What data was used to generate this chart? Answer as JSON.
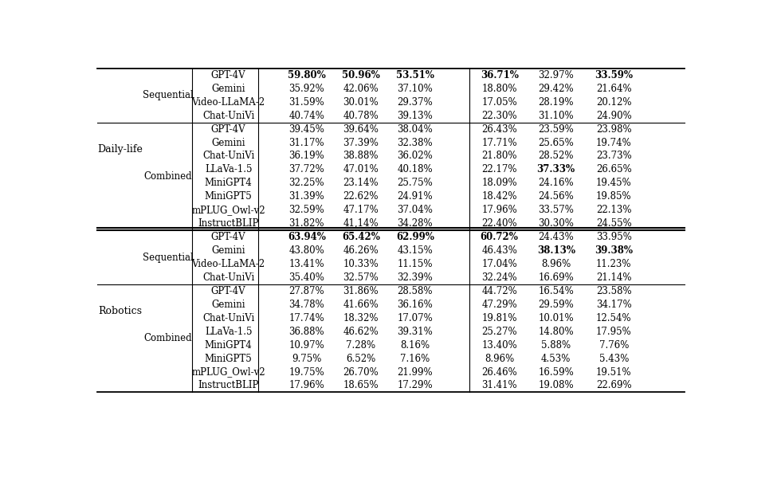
{
  "sections": [
    {
      "domain": "Daily-life",
      "subsections": [
        {
          "type": "Sequential",
          "rows": [
            {
              "model": "GPT-4V",
              "vals": [
                "59.80%",
                "50.96%",
                "53.51%",
                "36.71%",
                "32.97%",
                "33.59%"
              ],
              "bold": [
                true,
                true,
                true,
                true,
                false,
                true
              ]
            },
            {
              "model": "Gemini",
              "vals": [
                "35.92%",
                "42.06%",
                "37.10%",
                "18.80%",
                "29.42%",
                "21.64%"
              ],
              "bold": [
                false,
                false,
                false,
                false,
                false,
                false
              ]
            },
            {
              "model": "Video-LLaMA-2",
              "vals": [
                "31.59%",
                "30.01%",
                "29.37%",
                "17.05%",
                "28.19%",
                "20.12%"
              ],
              "bold": [
                false,
                false,
                false,
                false,
                false,
                false
              ]
            },
            {
              "model": "Chat-UniVi",
              "vals": [
                "40.74%",
                "40.78%",
                "39.13%",
                "22.30%",
                "31.10%",
                "24.90%"
              ],
              "bold": [
                false,
                false,
                false,
                false,
                false,
                false
              ]
            }
          ]
        },
        {
          "type": "Combined",
          "rows": [
            {
              "model": "GPT-4V",
              "vals": [
                "39.45%",
                "39.64%",
                "38.04%",
                "26.43%",
                "23.59%",
                "23.98%"
              ],
              "bold": [
                false,
                false,
                false,
                false,
                false,
                false
              ]
            },
            {
              "model": "Gemini",
              "vals": [
                "31.17%",
                "37.39%",
                "32.38%",
                "17.71%",
                "25.65%",
                "19.74%"
              ],
              "bold": [
                false,
                false,
                false,
                false,
                false,
                false
              ]
            },
            {
              "model": "Chat-UniVi",
              "vals": [
                "36.19%",
                "38.88%",
                "36.02%",
                "21.80%",
                "28.52%",
                "23.73%"
              ],
              "bold": [
                false,
                false,
                false,
                false,
                false,
                false
              ]
            },
            {
              "model": "LLaVa-1.5",
              "vals": [
                "37.72%",
                "47.01%",
                "40.18%",
                "22.17%",
                "37.33%",
                "26.65%"
              ],
              "bold": [
                false,
                false,
                false,
                false,
                true,
                false
              ]
            },
            {
              "model": "MiniGPT4",
              "vals": [
                "32.25%",
                "23.14%",
                "25.75%",
                "18.09%",
                "24.16%",
                "19.45%"
              ],
              "bold": [
                false,
                false,
                false,
                false,
                false,
                false
              ]
            },
            {
              "model": "MiniGPT5",
              "vals": [
                "31.39%",
                "22.62%",
                "24.91%",
                "18.42%",
                "24.56%",
                "19.85%"
              ],
              "bold": [
                false,
                false,
                false,
                false,
                false,
                false
              ]
            },
            {
              "model": "mPLUG_Owl-v2",
              "vals": [
                "32.59%",
                "47.17%",
                "37.04%",
                "17.96%",
                "33.57%",
                "22.13%"
              ],
              "bold": [
                false,
                false,
                false,
                false,
                false,
                false
              ]
            },
            {
              "model": "InstructBLIP",
              "vals": [
                "31.82%",
                "41,14%",
                "34.28%",
                "22.40%",
                "30.30%",
                "24.55%"
              ],
              "bold": [
                false,
                false,
                false,
                false,
                false,
                false
              ]
            }
          ]
        }
      ]
    },
    {
      "domain": "Robotics",
      "subsections": [
        {
          "type": "Sequential",
          "rows": [
            {
              "model": "GPT-4V",
              "vals": [
                "63.94%",
                "65.42%",
                "62.99%",
                "60.72%",
                "24.43%",
                "33.95%"
              ],
              "bold": [
                true,
                true,
                true,
                true,
                false,
                false
              ]
            },
            {
              "model": "Gemini",
              "vals": [
                "43.80%",
                "46.26%",
                "43.15%",
                "46.43%",
                "38.13%",
                "39.38%"
              ],
              "bold": [
                false,
                false,
                false,
                false,
                true,
                true
              ]
            },
            {
              "model": "Video-LLaMA-2",
              "vals": [
                "13.41%",
                "10.33%",
                "11.15%",
                "17.04%",
                "8.96%",
                "11.23%"
              ],
              "bold": [
                false,
                false,
                false,
                false,
                false,
                false
              ]
            },
            {
              "model": "Chat-UniVi",
              "vals": [
                "35.40%",
                "32.57%",
                "32.39%",
                "32.24%",
                "16.69%",
                "21.14%"
              ],
              "bold": [
                false,
                false,
                false,
                false,
                false,
                false
              ]
            }
          ]
        },
        {
          "type": "Combined",
          "rows": [
            {
              "model": "GPT-4V",
              "vals": [
                "27.87%",
                "31.86%",
                "28.58%",
                "44.72%",
                "16.54%",
                "23.58%"
              ],
              "bold": [
                false,
                false,
                false,
                false,
                false,
                false
              ]
            },
            {
              "model": "Gemini",
              "vals": [
                "34.78%",
                "41.66%",
                "36.16%",
                "47.29%",
                "29.59%",
                "34.17%"
              ],
              "bold": [
                false,
                false,
                false,
                false,
                false,
                false
              ]
            },
            {
              "model": "Chat-UniVi",
              "vals": [
                "17.74%",
                "18.32%",
                "17.07%",
                "19.81%",
                "10.01%",
                "12.54%"
              ],
              "bold": [
                false,
                false,
                false,
                false,
                false,
                false
              ]
            },
            {
              "model": "LLaVa-1.5",
              "vals": [
                "36.88%",
                "46.62%",
                "39.31%",
                "25.27%",
                "14.80%",
                "17.95%"
              ],
              "bold": [
                false,
                false,
                false,
                false,
                false,
                false
              ]
            },
            {
              "model": "MiniGPT4",
              "vals": [
                "10.97%",
                "7.28%",
                "8.16%",
                "13.40%",
                "5.88%",
                "7.76%"
              ],
              "bold": [
                false,
                false,
                false,
                false,
                false,
                false
              ]
            },
            {
              "model": "MiniGPT5",
              "vals": [
                "9.75%",
                "6.52%",
                "7.16%",
                "8.96%",
                "4.53%",
                "5.43%"
              ],
              "bold": [
                false,
                false,
                false,
                false,
                false,
                false
              ]
            },
            {
              "model": "mPLUG_Owl-v2",
              "vals": [
                "19.75%",
                "26.70%",
                "21.99%",
                "26.46%",
                "16.59%",
                "19.51%"
              ],
              "bold": [
                false,
                false,
                false,
                false,
                false,
                false
              ]
            },
            {
              "model": "InstructBLIP",
              "vals": [
                "17.96%",
                "18.65%",
                "17.29%",
                "31.41%",
                "19.08%",
                "22.69%"
              ],
              "bold": [
                false,
                false,
                false,
                false,
                false,
                false
              ]
            }
          ]
        }
      ]
    }
  ],
  "bg_color": "#ffffff",
  "text_color": "#000000",
  "font_size": 8.5
}
